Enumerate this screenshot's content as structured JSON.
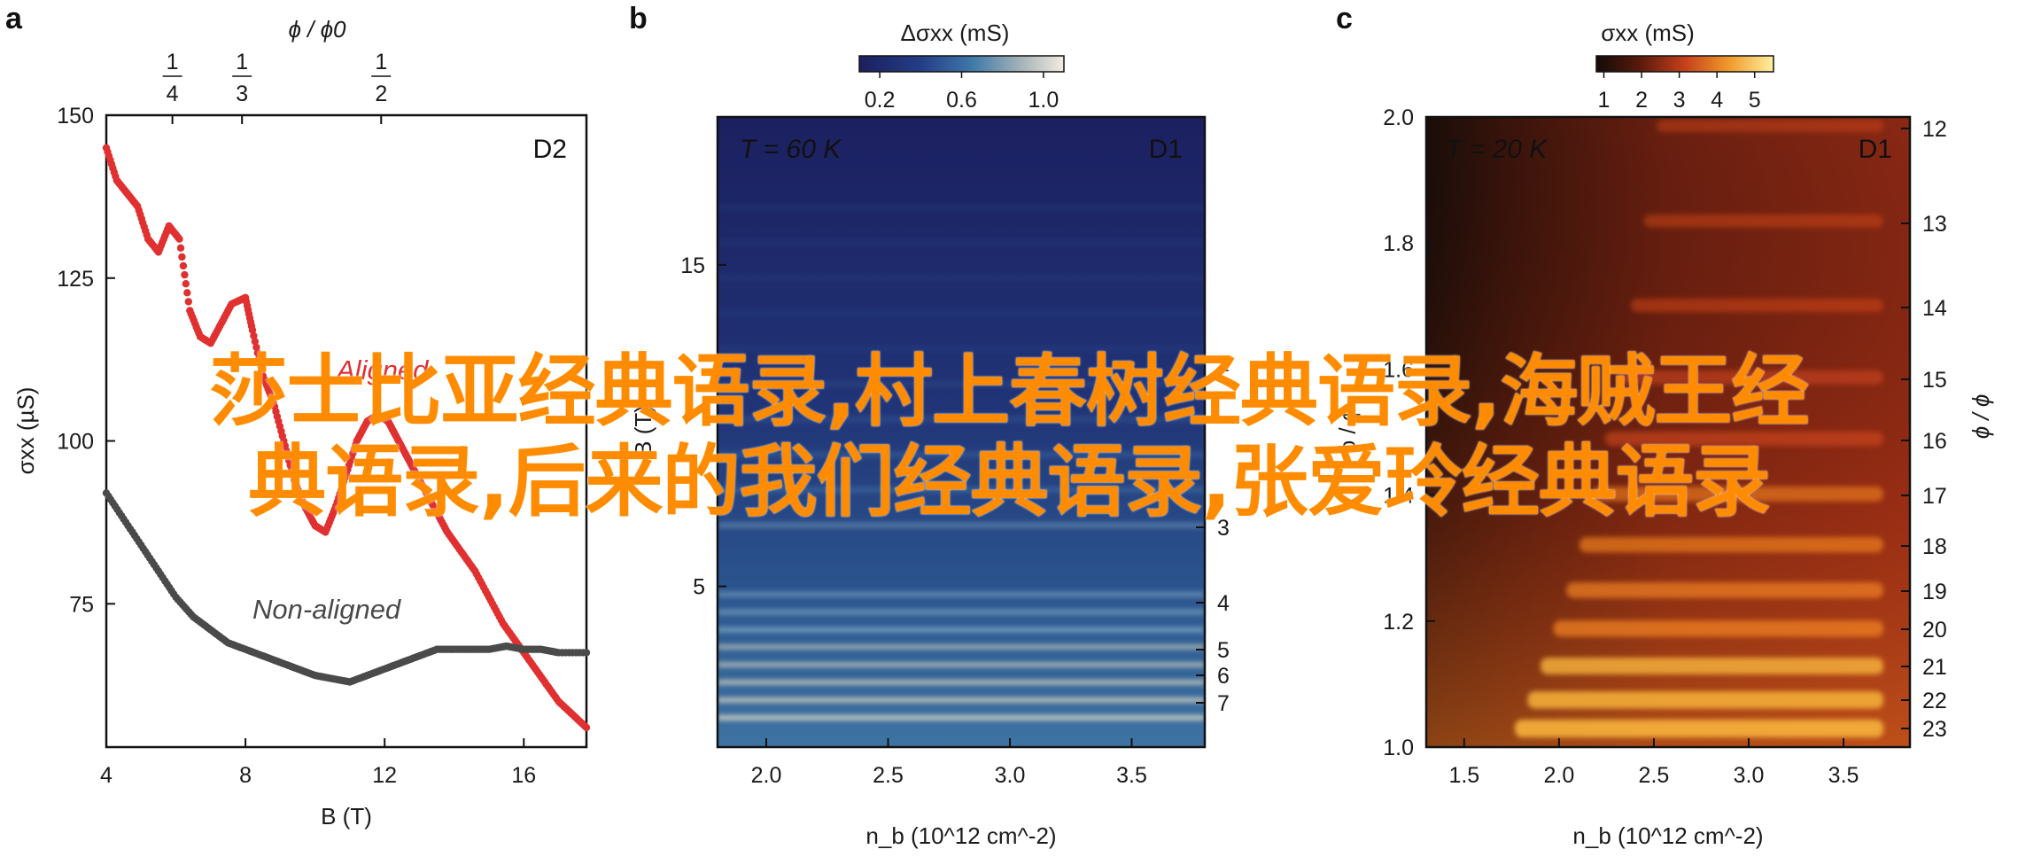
{
  "panels": {
    "a": {
      "letter": "a"
    },
    "b": {
      "letter": "b"
    },
    "c": {
      "letter": "c"
    }
  },
  "chart_data": [
    {
      "id": "a",
      "type": "scatter",
      "device_label": "D2",
      "xlabel": "B (T)",
      "ylabel": "σxx (µS)",
      "x_ticks": [
        4,
        8,
        12,
        16
      ],
      "y_ticks": [
        75,
        100,
        125,
        150
      ],
      "xlim": [
        4,
        17.8
      ],
      "ylim": [
        53,
        150
      ],
      "top_axis": {
        "label": "ϕ / ϕ0",
        "ticks": [
          {
            "label": "1/4",
            "B": 5.9
          },
          {
            "label": "1/3",
            "B": 7.9
          },
          {
            "label": "1/2",
            "B": 11.9
          }
        ]
      },
      "annotations": [
        "Aligned",
        "Non-aligned"
      ],
      "series": [
        {
          "name": "Aligned",
          "color": "#e03030",
          "x": [
            4,
            4.3,
            4.6,
            4.9,
            5.2,
            5.5,
            5.8,
            6.1,
            6.4,
            6.7,
            7.0,
            7.3,
            7.6,
            8.0,
            8.2,
            8.5,
            8.8,
            9.1,
            9.4,
            9.7,
            10.0,
            10.3,
            10.6,
            10.9,
            11.2,
            11.5,
            11.8,
            12.1,
            12.3,
            12.6,
            12.9,
            13.2,
            13.5,
            13.8,
            14.2,
            14.6,
            15.0,
            15.4,
            15.8,
            16.2,
            16.6,
            17.0,
            17.4,
            17.8
          ],
          "y": [
            145,
            140,
            138,
            136,
            131,
            129,
            133,
            131,
            120,
            116,
            115,
            118,
            121,
            122,
            117,
            110,
            106,
            100,
            94,
            90,
            87,
            86,
            90,
            95,
            100,
            103,
            104,
            103,
            101,
            98,
            95,
            92,
            89,
            86,
            83,
            80,
            76,
            72,
            69,
            66,
            63,
            60,
            58,
            56
          ]
        },
        {
          "name": "Non-aligned",
          "color": "#4a4a4a",
          "x": [
            4,
            4.5,
            5,
            5.5,
            6,
            6.5,
            7,
            7.5,
            8,
            8.5,
            9,
            9.5,
            10,
            10.5,
            11,
            11.5,
            12,
            12.5,
            13,
            13.5,
            14,
            14.5,
            15,
            15.5,
            16,
            16.5,
            17,
            17.8
          ],
          "y": [
            92,
            88,
            84,
            80,
            76,
            73,
            71,
            69,
            68,
            67,
            66,
            65,
            64,
            63.5,
            63,
            64,
            65,
            66,
            67,
            68,
            68,
            68,
            68,
            68.5,
            68,
            68,
            67.5,
            67.5
          ]
        }
      ]
    },
    {
      "id": "b",
      "type": "heatmap",
      "inset_label": "T = 60 K",
      "device_label": "D1",
      "xlabel": "n_b (10^12 cm^-2)",
      "ylabel": "B (T)",
      "colorbar_label": "Δσxx (mS)",
      "colorbar_ticks": [
        0.2,
        0.6,
        1.0
      ],
      "x_ticks": [
        2.0,
        2.5,
        3.0,
        3.5
      ],
      "y_ticks": [
        5,
        15
      ],
      "xlim": [
        1.8,
        3.8
      ],
      "ylim": [
        0,
        19.6
      ],
      "right_axis_ticks": [
        "2",
        "3",
        "4",
        "5",
        "6",
        "7"
      ]
    },
    {
      "id": "c",
      "type": "heatmap",
      "inset_label": "T = 20 K",
      "device_label": "D1",
      "xlabel": "n_b (10^12 cm^-2)",
      "ylabel": "ϕ / ϕ",
      "colorbar_label": "σxx (mS)",
      "colorbar_ticks": [
        1,
        2,
        3,
        4,
        5
      ],
      "x_ticks": [
        1.5,
        2.0,
        2.5,
        3.0,
        3.5
      ],
      "y_ticks": [
        1.0,
        1.2,
        1.4,
        1.6,
        1.8,
        2.0
      ],
      "xlim": [
        1.3,
        3.85
      ],
      "ylim": [
        1.0,
        2.0
      ],
      "right_axis_label": "ϕ / ϕ",
      "right_axis_ticks": [
        12,
        13,
        14,
        15,
        16,
        17,
        18,
        19,
        20,
        21,
        22,
        23
      ]
    }
  ],
  "watermark": {
    "line1": "莎士比亚经典语录,村上春树经典语录,海贼王经",
    "line2": "典语录,后来的我们经典语录,张爱玲经典语录"
  }
}
